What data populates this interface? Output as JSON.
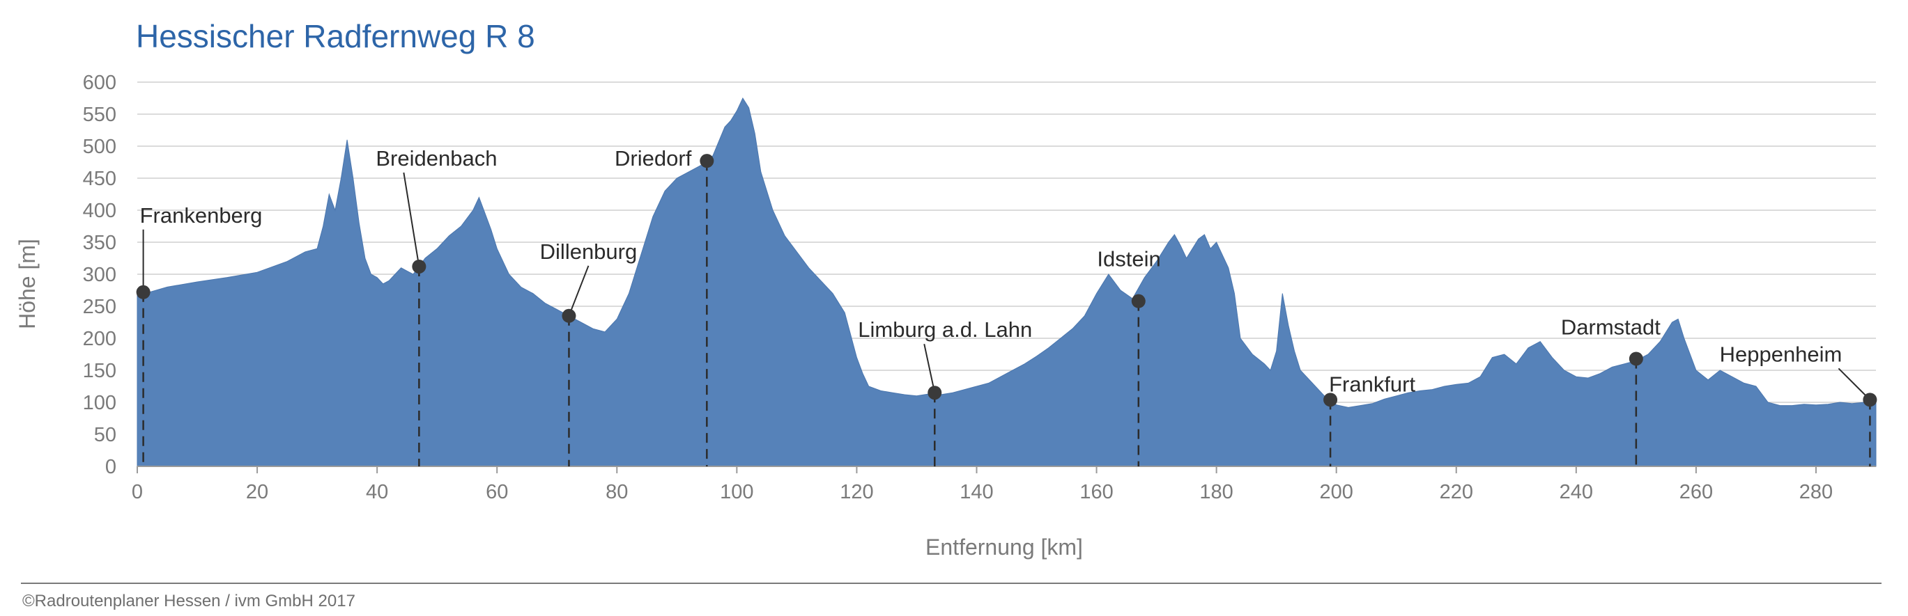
{
  "chart_data": {
    "type": "area",
    "title": "Hessischer Radfernweg R 8",
    "xlabel": "Entfernung [km]",
    "ylabel": "Höhe [m]",
    "xlim": [
      0,
      290
    ],
    "ylim": [
      0,
      600
    ],
    "x_ticks": [
      0,
      20,
      40,
      60,
      80,
      100,
      120,
      140,
      160,
      180,
      200,
      220,
      240,
      260,
      280
    ],
    "y_ticks": [
      0,
      50,
      100,
      150,
      200,
      250,
      300,
      350,
      400,
      450,
      500,
      550,
      600
    ],
    "grid": "horizontal",
    "fill_color": "#5682b9",
    "profile": {
      "x": [
        0,
        2,
        5,
        10,
        15,
        20,
        25,
        28,
        30,
        31,
        32,
        33,
        34,
        35,
        36,
        37,
        38,
        39,
        40,
        41,
        42,
        43,
        44,
        45,
        46,
        47,
        48,
        50,
        52,
        54,
        56,
        57,
        58,
        59,
        60,
        62,
        64,
        66,
        68,
        70,
        72,
        74,
        76,
        78,
        80,
        82,
        84,
        86,
        88,
        90,
        92,
        94,
        96,
        98,
        99,
        100,
        101,
        102,
        103,
        104,
        106,
        108,
        110,
        112,
        114,
        116,
        118,
        120,
        121,
        122,
        124,
        126,
        128,
        130,
        132,
        134,
        136,
        138,
        140,
        142,
        144,
        146,
        148,
        150,
        152,
        154,
        156,
        158,
        160,
        162,
        164,
        166,
        168,
        170,
        172,
        173,
        174,
        175,
        176,
        177,
        178,
        179,
        180,
        181,
        182,
        183,
        184,
        186,
        188,
        189,
        190,
        191,
        192,
        193,
        194,
        196,
        198,
        200,
        202,
        204,
        206,
        208,
        210,
        212,
        214,
        216,
        218,
        220,
        222,
        224,
        226,
        228,
        230,
        232,
        234,
        236,
        238,
        240,
        242,
        244,
        246,
        248,
        250,
        252,
        254,
        256,
        257,
        258,
        260,
        262,
        264,
        266,
        268,
        270,
        272,
        274,
        276,
        278,
        280,
        282,
        284,
        286,
        288,
        290
      ],
      "y": [
        268,
        272,
        280,
        288,
        295,
        303,
        320,
        335,
        340,
        375,
        425,
        400,
        450,
        510,
        450,
        380,
        325,
        300,
        295,
        285,
        290,
        300,
        310,
        305,
        300,
        312,
        325,
        340,
        360,
        375,
        400,
        420,
        395,
        370,
        340,
        300,
        280,
        270,
        255,
        245,
        235,
        225,
        215,
        210,
        230,
        270,
        330,
        390,
        430,
        450,
        460,
        470,
        485,
        530,
        540,
        555,
        575,
        560,
        520,
        460,
        400,
        360,
        335,
        310,
        290,
        270,
        240,
        170,
        145,
        125,
        118,
        115,
        112,
        110,
        113,
        112,
        115,
        120,
        125,
        130,
        140,
        150,
        160,
        172,
        185,
        200,
        215,
        235,
        270,
        300,
        275,
        262,
        295,
        320,
        350,
        362,
        345,
        325,
        340,
        355,
        362,
        340,
        350,
        330,
        310,
        270,
        200,
        175,
        160,
        150,
        180,
        270,
        220,
        180,
        150,
        130,
        110,
        96,
        92,
        95,
        98,
        105,
        110,
        115,
        118,
        120,
        125,
        128,
        130,
        140,
        170,
        175,
        160,
        185,
        195,
        170,
        150,
        140,
        138,
        145,
        155,
        160,
        165,
        175,
        195,
        225,
        230,
        200,
        150,
        135,
        150,
        140,
        130,
        125,
        100,
        95,
        95,
        97,
        96,
        97,
        100,
        98,
        100,
        102
      ]
    },
    "places": [
      {
        "name": "Frankenberg",
        "km": 1,
        "elev": 272
      },
      {
        "name": "Breidenbach",
        "km": 47,
        "elev": 312
      },
      {
        "name": "Dillenburg",
        "km": 72,
        "elev": 235
      },
      {
        "name": "Driedorf",
        "km": 95,
        "elev": 477
      },
      {
        "name": "Limburg a.d. Lahn",
        "km": 133,
        "elev": 115
      },
      {
        "name": "Idstein",
        "km": 167,
        "elev": 258
      },
      {
        "name": "Frankfurt",
        "km": 199,
        "elev": 104
      },
      {
        "name": "Darmstadt",
        "km": 250,
        "elev": 168
      },
      {
        "name": "Heppenheim",
        "km": 289,
        "elev": 104
      }
    ]
  },
  "footer": "©Radroutenplaner Hessen / ivm GmbH 2017"
}
